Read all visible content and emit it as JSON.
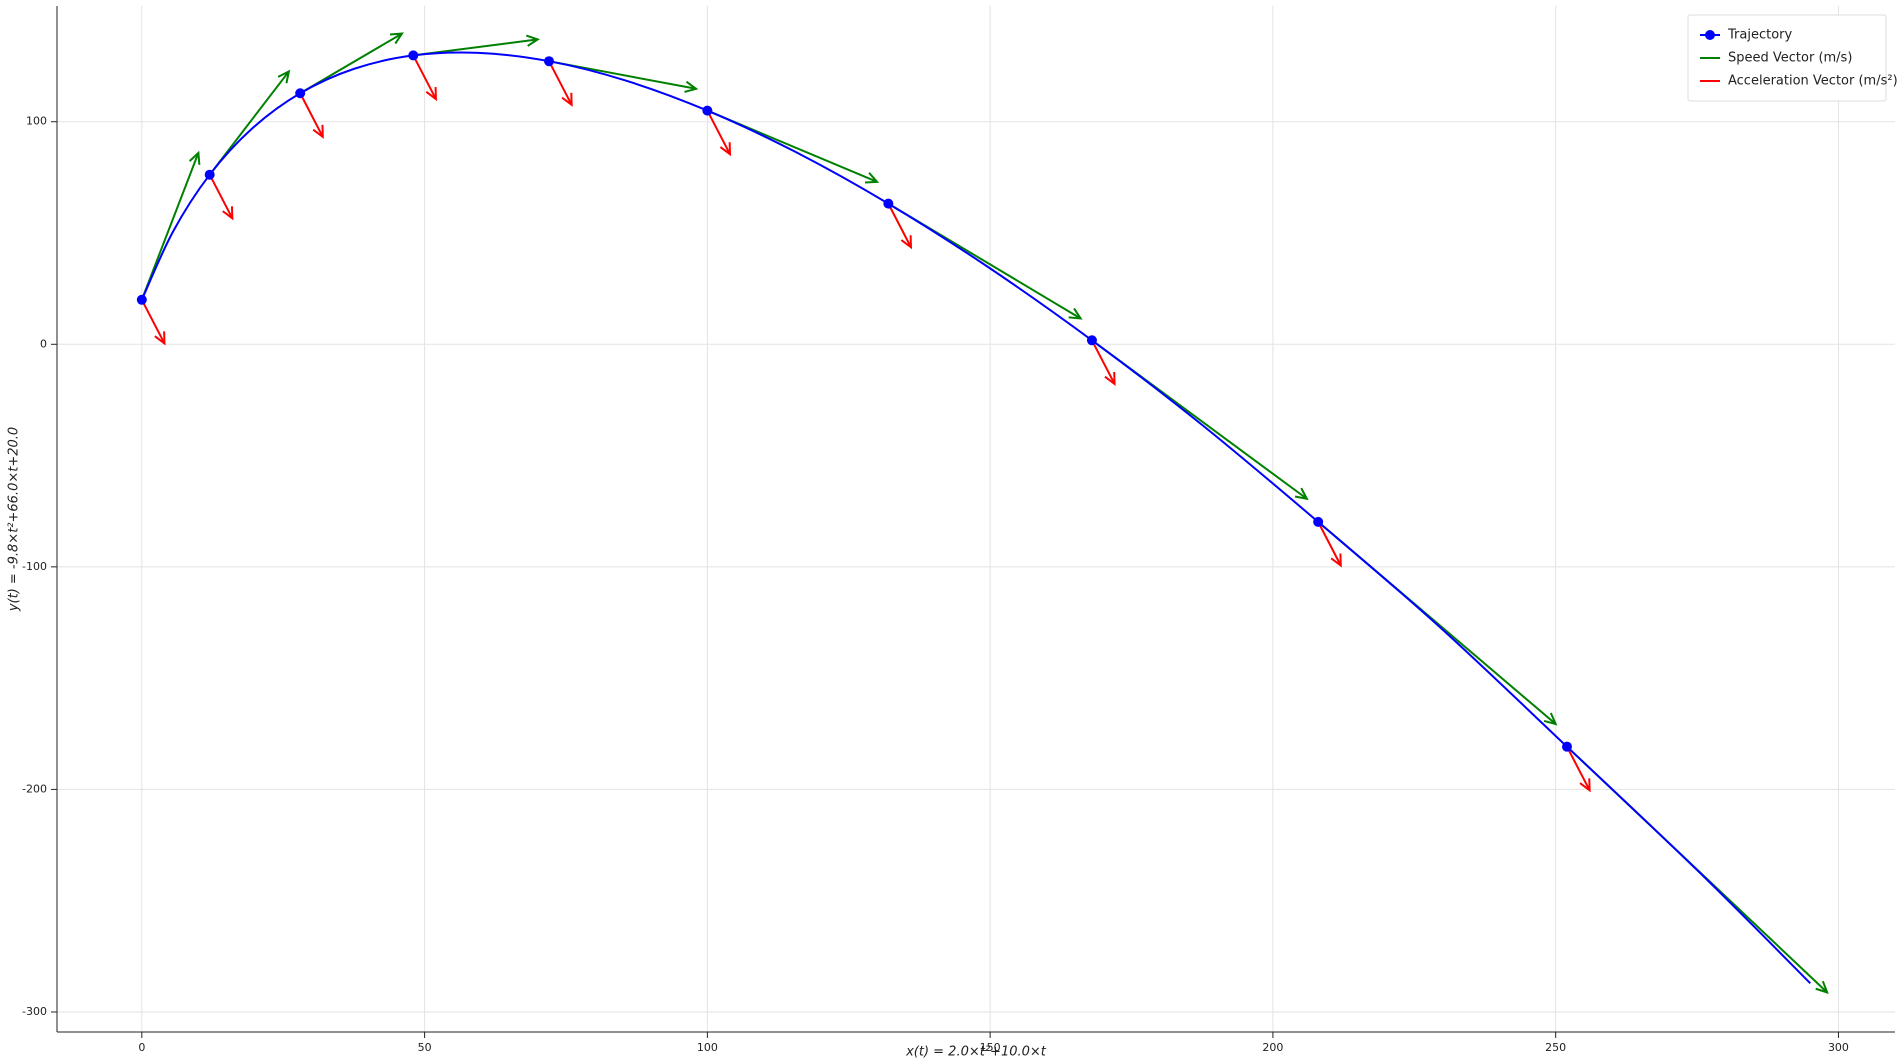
{
  "chart_data": {
    "type": "line",
    "xlabel": "x(t) = 2.0×t²+10.0×t",
    "ylabel": "y(t) = -9.8×t²+66.0×t+20.0",
    "xlim": [
      -15,
      310
    ],
    "ylim": [
      -309,
      152
    ],
    "xticks": [
      0,
      50,
      100,
      150,
      200,
      250,
      300
    ],
    "yticks": [
      -300,
      -200,
      -100,
      0,
      100
    ],
    "grid": true,
    "legend": "upper right",
    "series": [
      {
        "name": "Trajectory",
        "kind": "line",
        "color": "#0000ff",
        "x": [
          0,
          5.5,
          12,
          19.5,
          28,
          37.5,
          48,
          59.5,
          72,
          85.5,
          100,
          115.5,
          132,
          149.5,
          168,
          187.5,
          208,
          229.5,
          252,
          275.5,
          295.02
        ],
        "y": [
          20,
          50.55,
          76.2,
          96.95,
          112.8,
          123.75,
          129.8,
          130.95,
          127.2,
          118.55,
          105,
          86.55,
          63.2,
          34.95,
          1.8,
          -36.25,
          -79.8,
          -127.05,
          -180.8,
          -237.45,
          -287.1
        ],
        "points": {
          "x": [
            0,
            12,
            28,
            48,
            72,
            100,
            132,
            168,
            208,
            252
          ],
          "y": [
            20,
            76.2,
            112.8,
            129.8,
            127.2,
            105,
            63.2,
            1.8,
            -79.8,
            -180.8
          ]
        }
      },
      {
        "name": "Speed Vector (m/s)",
        "kind": "quiver",
        "color": "#008000",
        "u": [
          10,
          14,
          18,
          22,
          26,
          30,
          34,
          38,
          42,
          46
        ],
        "v": [
          66,
          46.4,
          26.8,
          7.2,
          -12.4,
          -32,
          -51.6,
          -71.2,
          -90.8,
          -110.4
        ]
      },
      {
        "name": "Acceleration Vector (m/s²)",
        "kind": "quiver",
        "color": "#ff0000",
        "u": [
          4,
          4,
          4,
          4,
          4,
          4,
          4,
          4,
          4,
          4
        ],
        "v": [
          -19.6,
          -19.6,
          -19.6,
          -19.6,
          -19.6,
          -19.6,
          -19.6,
          -19.6,
          -19.6,
          -19.6
        ]
      }
    ]
  }
}
